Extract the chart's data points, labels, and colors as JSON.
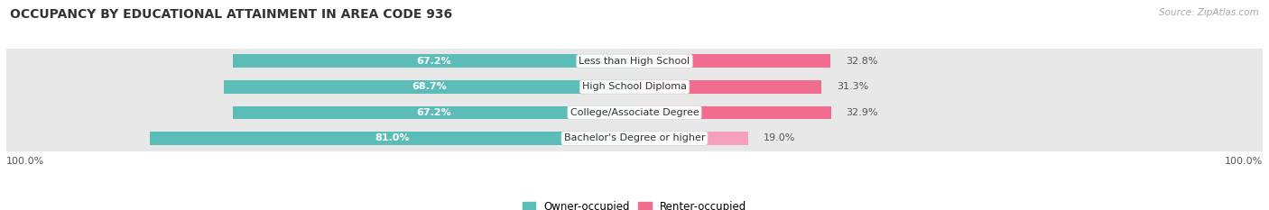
{
  "title": "OCCUPANCY BY EDUCATIONAL ATTAINMENT IN AREA CODE 936",
  "source": "Source: ZipAtlas.com",
  "categories": [
    "Less than High School",
    "High School Diploma",
    "College/Associate Degree",
    "Bachelor's Degree or higher"
  ],
  "owner_pct": [
    67.2,
    68.7,
    67.2,
    81.0
  ],
  "renter_pct": [
    32.8,
    31.3,
    32.9,
    19.0
  ],
  "owner_color": "#5bbcb8",
  "renter_colors": [
    "#f06d8f",
    "#f06d8f",
    "#f06d8f",
    "#f5a0bc"
  ],
  "row_bg_color": "#e8e8e8",
  "title_fontsize": 10,
  "bar_label_fontsize": 8,
  "cat_label_fontsize": 8,
  "axis_label_fontsize": 8,
  "legend_fontsize": 8.5,
  "bar_height": 0.52,
  "figsize": [
    14.06,
    2.33
  ],
  "dpi": 100,
  "xlim_left": -105,
  "xlim_right": 105
}
